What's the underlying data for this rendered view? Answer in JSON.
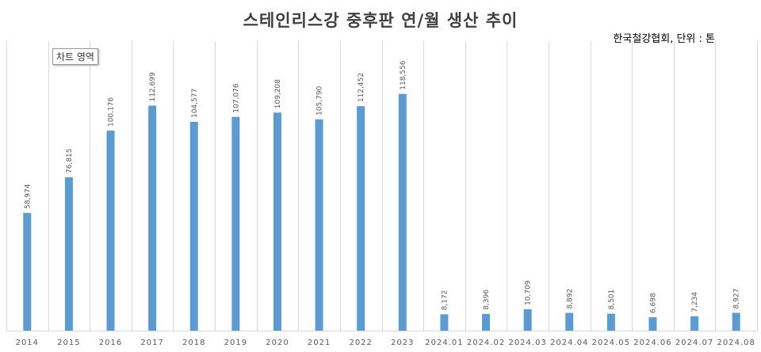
{
  "title": "스테인리스강 중후판 연/월 생산 추이",
  "source_unit": "한국철강협회, 단위 : 톤",
  "tooltip": "차트 영역",
  "colors": {
    "bar": "#5b9bd5",
    "grid": "#d9d9d9",
    "text": "#595959"
  },
  "chart_data": {
    "type": "bar",
    "title": "스테인리스강 중후판 연/월 생산 추이",
    "xlabel": "",
    "ylabel": "",
    "categories": [
      "2014",
      "2015",
      "2016",
      "2017",
      "2018",
      "2019",
      "2020",
      "2021",
      "2022",
      "2023",
      "2024.01",
      "2024.02",
      "2024.03",
      "2024.04",
      "2024.05",
      "2024.06",
      "2024.07",
      "2024.08"
    ],
    "values": [
      58974,
      76815,
      100176,
      112699,
      104577,
      107076,
      109208,
      105790,
      112452,
      118556,
      8172,
      8396,
      10709,
      8892,
      8501,
      6698,
      7234,
      8927
    ],
    "data_labels": [
      "58,974",
      "76,815",
      "100,176",
      "112,699",
      "104,577",
      "107,076",
      "109,208",
      "105,790",
      "112,452",
      "118,556",
      "8,172",
      "8,396",
      "10,709",
      "8,892",
      "8,501",
      "6,698",
      "7,234",
      "8,927"
    ],
    "ylim": [
      0,
      145000
    ],
    "grid": "vertical",
    "legend": "none"
  }
}
